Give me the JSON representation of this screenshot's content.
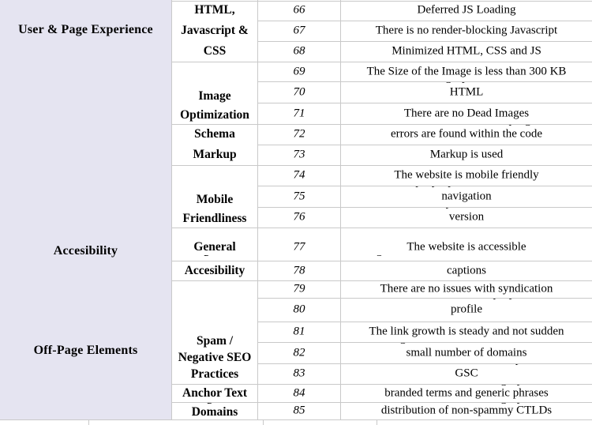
{
  "palette": {
    "category_bg": "#e5e4f1",
    "grid_line": "#c9c9c9",
    "text": "#000000",
    "page_bg": "#ffffff"
  },
  "categories": [
    {
      "label": "User & Page Experience"
    },
    {
      "label": "Accesibility"
    },
    {
      "label": "Off-Page Elements"
    }
  ],
  "subcategories": [
    {
      "lines": [
        "HTML,",
        "Javascript &",
        "CSS"
      ]
    },
    {
      "lines": [
        "Image",
        "Optimization"
      ]
    },
    {
      "lines": [
        "Schema",
        "Markup"
      ]
    },
    {
      "lines": [
        "Mobile",
        "Friendliness"
      ]
    },
    {
      "lines": [
        "General"
      ],
      "frag_bottom": "g"
    },
    {
      "lines": [
        "Accesibility"
      ]
    },
    {
      "lines": [
        "Spam /",
        "Negative SEO",
        "Practices"
      ]
    },
    {
      "lines": [
        "Anchor Text"
      ]
    },
    {
      "lines": [
        "Domains"
      ],
      "frag_top": "g"
    }
  ],
  "rows": [
    {
      "num": "66",
      "desc": "Deferred JS Loading"
    },
    {
      "num": "67",
      "desc": "There is no render-blocking Javascript"
    },
    {
      "num": "68",
      "desc": "Minimized HTML, CSS and JS"
    },
    {
      "num": "69",
      "desc": "The Size of the Image is less than 300 KB"
    },
    {
      "num": "70",
      "desc": "HTML",
      "frag_top": "gp"
    },
    {
      "num": "71",
      "desc": "There are no Dead Images"
    },
    {
      "num": "72",
      "desc": "errors are found within the code",
      "frag_top": "pg"
    },
    {
      "num": "73",
      "desc": "Markup is used"
    },
    {
      "num": "74",
      "desc": "The website is mobile friendly"
    },
    {
      "num": "75",
      "desc": "navigation",
      "frag_top": "ppp"
    },
    {
      "num": "76",
      "desc": "version",
      "frag_top": "y"
    },
    {
      "num": "77",
      "desc": "The website is accessible",
      "frag_bottom": "g"
    },
    {
      "num": "78",
      "desc": "captions"
    },
    {
      "num": "79",
      "desc": "There are no issues with syndication"
    },
    {
      "num": "80",
      "desc": "profile",
      "frag_top": "py"
    },
    {
      "num": "81",
      "desc": "The link growth is steady and not sudden"
    },
    {
      "num": "82",
      "desc": "small number of domains",
      "frag_top": "g"
    },
    {
      "num": "83",
      "desc": "GSC",
      "frag_top": "p"
    },
    {
      "num": "84",
      "desc": "branded terms and generic phrases",
      "frag_top": "gy"
    },
    {
      "num": "85",
      "desc": "distribution of non-spammy CTLDs",
      "frag_top": "gy"
    }
  ]
}
